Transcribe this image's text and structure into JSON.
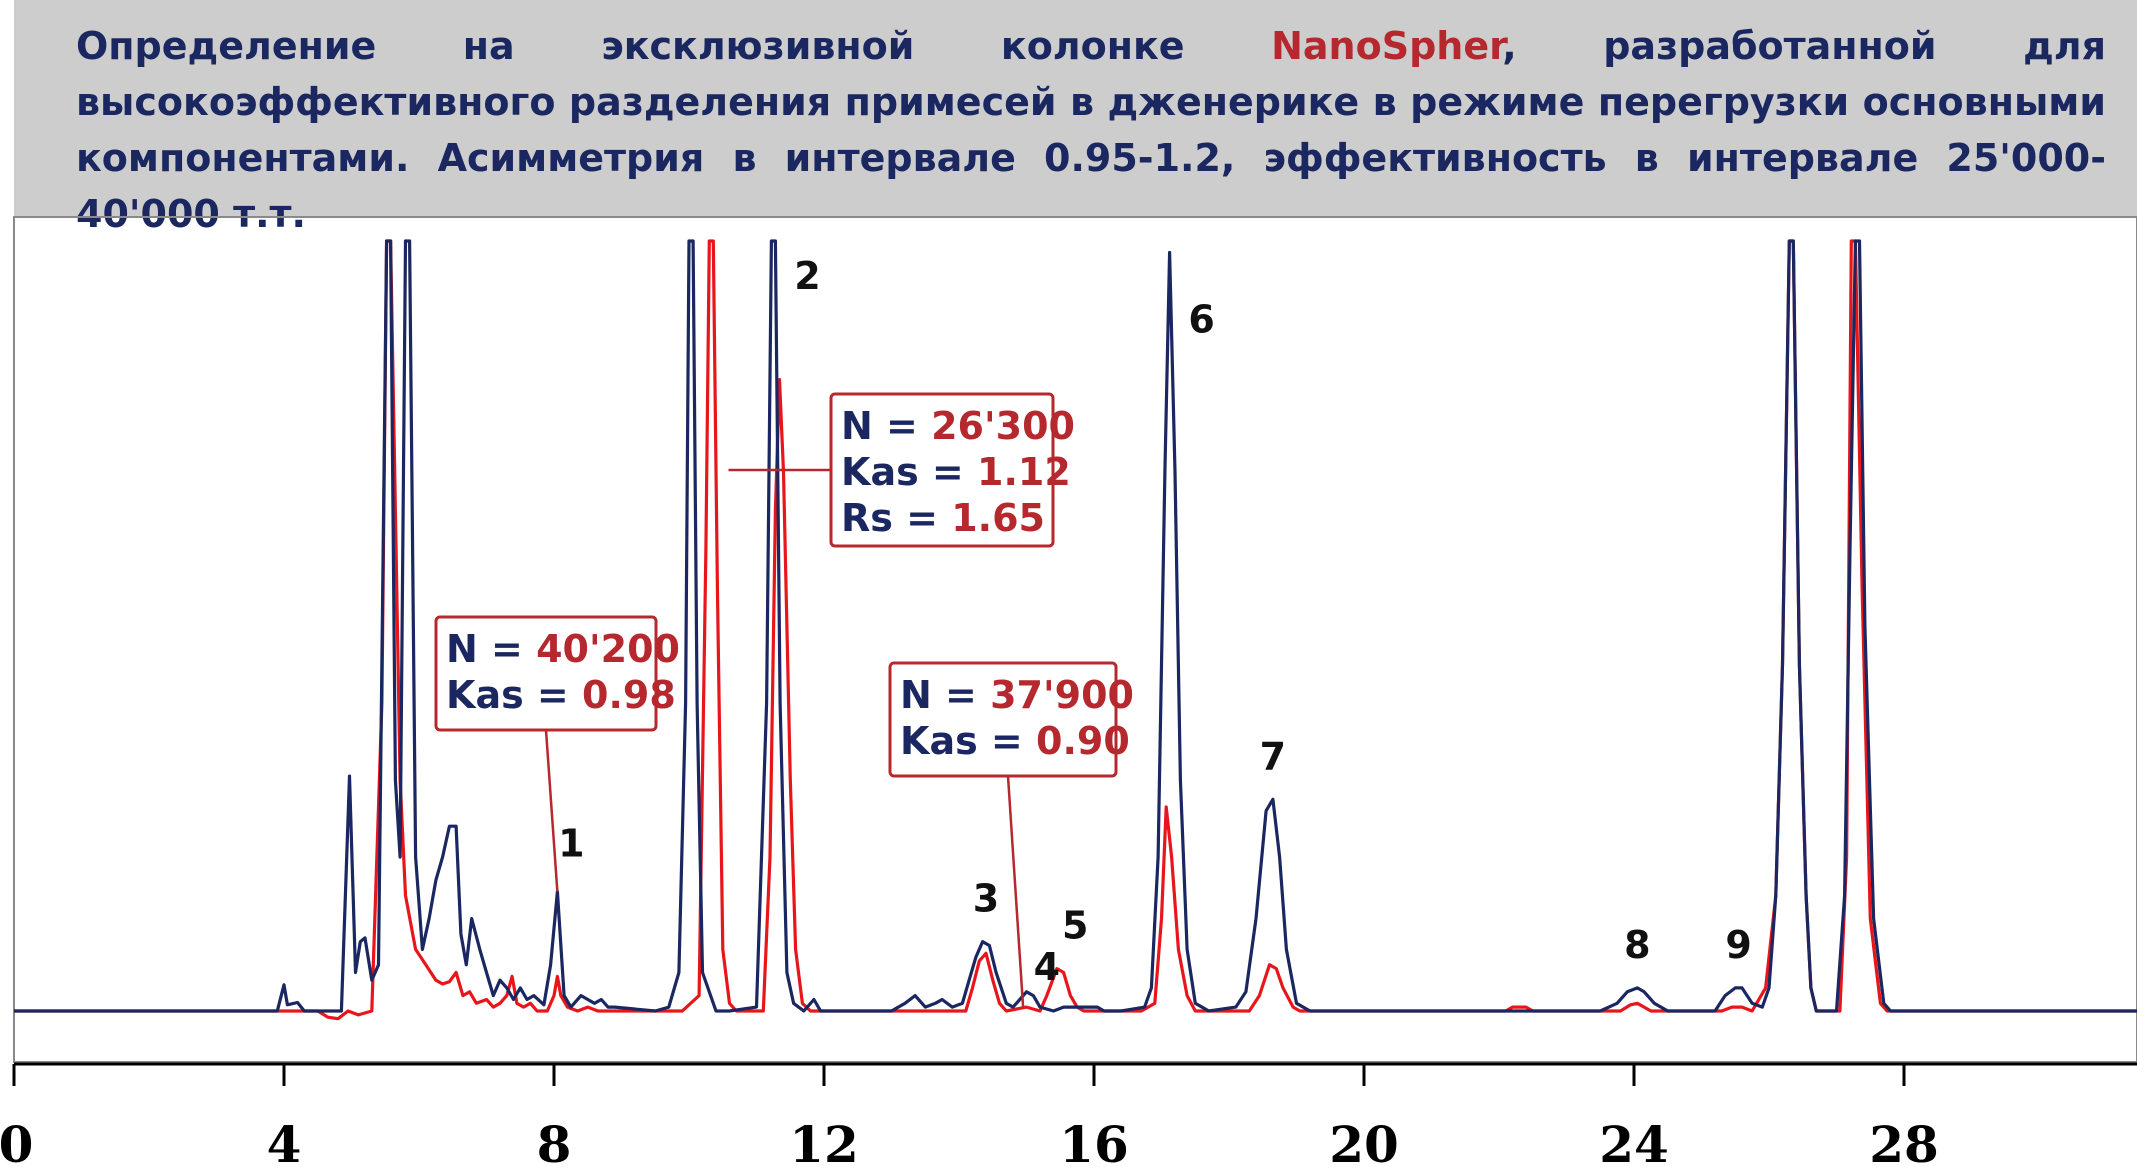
{
  "title": {
    "part1": "Определение на эксклюзивной колонке ",
    "brand": "NanoSpher",
    "part2": ", разработанной для высокоэффективного разделения примесей в дженерике в режиме перегрузки основными компонентами. Асимметрия в интервале 0.95-1.2, эффективность в интервале 25'000-40'000 т.т."
  },
  "colors": {
    "header_bg": "#cdcdcd",
    "title_text": "#1a2760",
    "brand": "#b5282e",
    "series_navy": "#1a2760",
    "series_red": "#e8161b",
    "box_border": "#b5282e"
  },
  "chart_data": {
    "type": "line",
    "title": "",
    "xlabel": "",
    "ylabel": "",
    "xlim": [
      0,
      31.5
    ],
    "ylim": [
      0,
      100
    ],
    "x_ticks": [
      0,
      4,
      8,
      12,
      16,
      20,
      24,
      28
    ],
    "x_tick_labels": [
      "0",
      "4",
      "8",
      "12",
      "16",
      "20",
      "24",
      "28"
    ],
    "grid": false,
    "series": [
      {
        "color": "#1a2760",
        "points": [
          [
            0,
            0
          ],
          [
            3.9,
            0
          ],
          [
            4.0,
            3.4
          ],
          [
            4.05,
            0.8
          ],
          [
            4.2,
            1.1
          ],
          [
            4.3,
            0
          ],
          [
            4.7,
            0
          ],
          [
            4.85,
            0
          ],
          [
            4.97,
            30.5
          ],
          [
            5.06,
            5
          ],
          [
            5.13,
            9
          ],
          [
            5.2,
            9.5
          ],
          [
            5.3,
            4
          ],
          [
            5.4,
            6
          ],
          [
            5.52,
            100
          ],
          [
            5.58,
            100
          ],
          [
            5.65,
            30
          ],
          [
            5.72,
            20
          ],
          [
            5.8,
            100
          ],
          [
            5.86,
            100
          ],
          [
            5.95,
            20
          ],
          [
            6.05,
            8
          ],
          [
            6.15,
            12
          ],
          [
            6.25,
            17
          ],
          [
            6.35,
            20
          ],
          [
            6.45,
            24
          ],
          [
            6.55,
            24
          ],
          [
            6.62,
            10
          ],
          [
            6.7,
            6
          ],
          [
            6.78,
            12
          ],
          [
            6.9,
            8
          ],
          [
            7.0,
            5
          ],
          [
            7.1,
            2
          ],
          [
            7.2,
            4
          ],
          [
            7.3,
            3
          ],
          [
            7.4,
            1.5
          ],
          [
            7.5,
            3
          ],
          [
            7.6,
            1.5
          ],
          [
            7.7,
            2
          ],
          [
            7.85,
            0.8
          ],
          [
            7.95,
            6
          ],
          [
            8.05,
            15.5
          ],
          [
            8.15,
            2
          ],
          [
            8.25,
            0.5
          ],
          [
            8.4,
            2
          ],
          [
            8.5,
            1.5
          ],
          [
            8.6,
            1
          ],
          [
            8.7,
            1.5
          ],
          [
            8.8,
            0.5
          ],
          [
            8.9,
            0.5
          ],
          [
            9.5,
            0
          ],
          [
            9.7,
            0.5
          ],
          [
            9.85,
            5
          ],
          [
            9.95,
            40
          ],
          [
            10.0,
            100
          ],
          [
            10.06,
            100
          ],
          [
            10.12,
            40
          ],
          [
            10.2,
            5
          ],
          [
            10.4,
            0
          ],
          [
            10.6,
            0
          ],
          [
            11.0,
            0.5
          ],
          [
            11.15,
            40
          ],
          [
            11.22,
            100
          ],
          [
            11.28,
            100
          ],
          [
            11.35,
            40
          ],
          [
            11.45,
            5
          ],
          [
            11.55,
            1
          ],
          [
            11.7,
            0
          ],
          [
            11.85,
            1.5
          ],
          [
            11.95,
            0
          ],
          [
            13.0,
            0
          ],
          [
            13.2,
            1
          ],
          [
            13.35,
            2
          ],
          [
            13.5,
            0.5
          ],
          [
            13.65,
            1
          ],
          [
            13.75,
            1.5
          ],
          [
            13.9,
            0.5
          ],
          [
            14.05,
            1
          ],
          [
            14.15,
            4
          ],
          [
            14.25,
            7
          ],
          [
            14.35,
            9
          ],
          [
            14.45,
            8.5
          ],
          [
            14.55,
            5
          ],
          [
            14.7,
            1
          ],
          [
            14.8,
            0.5
          ],
          [
            14.9,
            1.5
          ],
          [
            15.0,
            2.5
          ],
          [
            15.1,
            2
          ],
          [
            15.2,
            0.5
          ],
          [
            15.4,
            0
          ],
          [
            15.55,
            0.5
          ],
          [
            15.8,
            0.5
          ],
          [
            16.05,
            0.5
          ],
          [
            16.15,
            0
          ],
          [
            16.4,
            0
          ],
          [
            16.75,
            0.5
          ],
          [
            16.85,
            3
          ],
          [
            16.95,
            20
          ],
          [
            17.05,
            70
          ],
          [
            17.12,
            98.5
          ],
          [
            17.2,
            70
          ],
          [
            17.28,
            30
          ],
          [
            17.38,
            8
          ],
          [
            17.5,
            1
          ],
          [
            17.7,
            0
          ],
          [
            18.1,
            0.5
          ],
          [
            18.25,
            2.5
          ],
          [
            18.4,
            12
          ],
          [
            18.55,
            26
          ],
          [
            18.65,
            27.5
          ],
          [
            18.75,
            20
          ],
          [
            18.85,
            8
          ],
          [
            19.0,
            1
          ],
          [
            19.2,
            0
          ],
          [
            23.5,
            0
          ],
          [
            23.75,
            1
          ],
          [
            23.9,
            2.5
          ],
          [
            24.05,
            3
          ],
          [
            24.15,
            2.5
          ],
          [
            24.3,
            1
          ],
          [
            24.5,
            0
          ],
          [
            25.2,
            0
          ],
          [
            25.35,
            2
          ],
          [
            25.5,
            3
          ],
          [
            25.6,
            3
          ],
          [
            25.75,
            1
          ],
          [
            25.9,
            0.5
          ],
          [
            26.0,
            3
          ],
          [
            26.1,
            15
          ],
          [
            26.2,
            45
          ],
          [
            26.3,
            100
          ],
          [
            26.36,
            100
          ],
          [
            26.45,
            45
          ],
          [
            26.55,
            15
          ],
          [
            26.62,
            3
          ],
          [
            26.7,
            0
          ],
          [
            27.0,
            0
          ],
          [
            27.12,
            15
          ],
          [
            27.2,
            60
          ],
          [
            27.28,
            100
          ],
          [
            27.34,
            100
          ],
          [
            27.42,
            50
          ],
          [
            27.55,
            12
          ],
          [
            27.7,
            1
          ],
          [
            27.8,
            0
          ],
          [
            31.5,
            0
          ]
        ]
      },
      {
        "color": "#e8161b",
        "points": [
          [
            0,
            0
          ],
          [
            4.5,
            0
          ],
          [
            4.65,
            -0.8
          ],
          [
            4.8,
            -1
          ],
          [
            4.95,
            0
          ],
          [
            5.1,
            -0.5
          ],
          [
            5.3,
            0
          ],
          [
            5.45,
            40
          ],
          [
            5.52,
            100
          ],
          [
            5.58,
            100
          ],
          [
            5.65,
            65
          ],
          [
            5.72,
            30
          ],
          [
            5.8,
            15
          ],
          [
            5.95,
            8
          ],
          [
            6.1,
            6
          ],
          [
            6.25,
            4
          ],
          [
            6.35,
            3.5
          ],
          [
            6.45,
            3.8
          ],
          [
            6.55,
            5
          ],
          [
            6.65,
            2
          ],
          [
            6.75,
            2.5
          ],
          [
            6.85,
            1
          ],
          [
            7.0,
            1.5
          ],
          [
            7.1,
            0.5
          ],
          [
            7.2,
            1
          ],
          [
            7.3,
            2
          ],
          [
            7.38,
            4.5
          ],
          [
            7.45,
            1
          ],
          [
            7.55,
            0.5
          ],
          [
            7.65,
            1
          ],
          [
            7.75,
            0
          ],
          [
            7.9,
            0
          ],
          [
            8.0,
            2
          ],
          [
            8.05,
            4.5
          ],
          [
            8.1,
            2
          ],
          [
            8.2,
            0.5
          ],
          [
            8.35,
            0
          ],
          [
            8.5,
            0.5
          ],
          [
            8.65,
            0
          ],
          [
            9.9,
            0
          ],
          [
            10.15,
            2
          ],
          [
            10.25,
            60
          ],
          [
            10.3,
            100
          ],
          [
            10.36,
            100
          ],
          [
            10.42,
            55
          ],
          [
            10.5,
            8
          ],
          [
            10.6,
            1
          ],
          [
            10.7,
            0
          ],
          [
            11.1,
            0
          ],
          [
            11.2,
            20
          ],
          [
            11.28,
            65
          ],
          [
            11.34,
            82
          ],
          [
            11.4,
            70
          ],
          [
            11.5,
            30
          ],
          [
            11.58,
            8
          ],
          [
            11.68,
            1
          ],
          [
            11.8,
            0
          ],
          [
            14.1,
            0
          ],
          [
            14.2,
            3
          ],
          [
            14.3,
            6.5
          ],
          [
            14.4,
            7.5
          ],
          [
            14.5,
            4
          ],
          [
            14.6,
            1
          ],
          [
            14.7,
            0
          ],
          [
            15.0,
            0.5
          ],
          [
            15.2,
            0
          ],
          [
            15.3,
            2
          ],
          [
            15.45,
            5.5
          ],
          [
            15.55,
            5
          ],
          [
            15.65,
            2
          ],
          [
            15.75,
            0.5
          ],
          [
            15.85,
            0
          ],
          [
            16.7,
            0
          ],
          [
            16.9,
            1
          ],
          [
            17.0,
            12
          ],
          [
            17.07,
            26.5
          ],
          [
            17.15,
            20
          ],
          [
            17.25,
            8
          ],
          [
            17.38,
            2
          ],
          [
            17.5,
            0
          ],
          [
            18.3,
            0
          ],
          [
            18.45,
            2
          ],
          [
            18.6,
            6
          ],
          [
            18.7,
            5.5
          ],
          [
            18.8,
            3
          ],
          [
            18.95,
            0.5
          ],
          [
            19.05,
            0
          ],
          [
            22.1,
            0
          ],
          [
            22.2,
            0.5
          ],
          [
            22.4,
            0.5
          ],
          [
            22.5,
            0
          ],
          [
            23.8,
            0
          ],
          [
            23.95,
            0.8
          ],
          [
            24.05,
            1
          ],
          [
            24.15,
            0.5
          ],
          [
            24.25,
            0
          ],
          [
            25.3,
            0
          ],
          [
            25.45,
            0.5
          ],
          [
            25.6,
            0.5
          ],
          [
            25.75,
            0
          ],
          [
            25.95,
            3
          ],
          [
            26.1,
            15
          ],
          [
            26.2,
            45
          ],
          [
            26.3,
            100
          ],
          [
            26.36,
            100
          ],
          [
            26.45,
            45
          ],
          [
            26.55,
            15
          ],
          [
            26.62,
            3
          ],
          [
            26.7,
            0
          ],
          [
            27.05,
            0
          ],
          [
            27.15,
            20
          ],
          [
            27.22,
            100
          ],
          [
            27.28,
            100
          ],
          [
            27.38,
            55
          ],
          [
            27.5,
            12
          ],
          [
            27.65,
            1
          ],
          [
            27.75,
            0
          ],
          [
            31.5,
            0
          ]
        ]
      }
    ],
    "peak_labels": [
      {
        "text": "1",
        "x": 8.05,
        "y": 15.5
      },
      {
        "text": "2",
        "x": 11.4,
        "y": 100
      },
      {
        "text": "3",
        "x": 14.4,
        "y": 9
      },
      {
        "text": "4",
        "x": 15.05,
        "y": 2.5
      },
      {
        "text": "5",
        "x": 15.5,
        "y": 5.5
      },
      {
        "text": "6",
        "x": 17.12,
        "y": 98.5
      },
      {
        "text": "7",
        "x": 18.65,
        "y": 27.5
      },
      {
        "text": "8",
        "x": 24.05,
        "y": 3
      },
      {
        "text": "9",
        "x": 25.55,
        "y": 3
      }
    ],
    "annotations": [
      {
        "lines": [
          {
            "key": "N = ",
            "value": "40'200"
          },
          {
            "key": "Kas = ",
            "value": "0.98"
          }
        ],
        "peak": "1",
        "peak_x": 8.05,
        "peak_y": 15.5
      },
      {
        "lines": [
          {
            "key": "N = ",
            "value": "26'300"
          },
          {
            "key": "Kas = ",
            "value": "1.12"
          },
          {
            "key": "Rs = ",
            "value": "1.65"
          }
        ],
        "peak": "2",
        "peak_x": 11.4,
        "peak_y": 72
      },
      {
        "lines": [
          {
            "key": "N = ",
            "value": "37'900"
          },
          {
            "key": "Kas = ",
            "value": "0.90"
          }
        ],
        "peak": "4",
        "peak_x": 14.95,
        "peak_y": 0.5
      }
    ]
  }
}
